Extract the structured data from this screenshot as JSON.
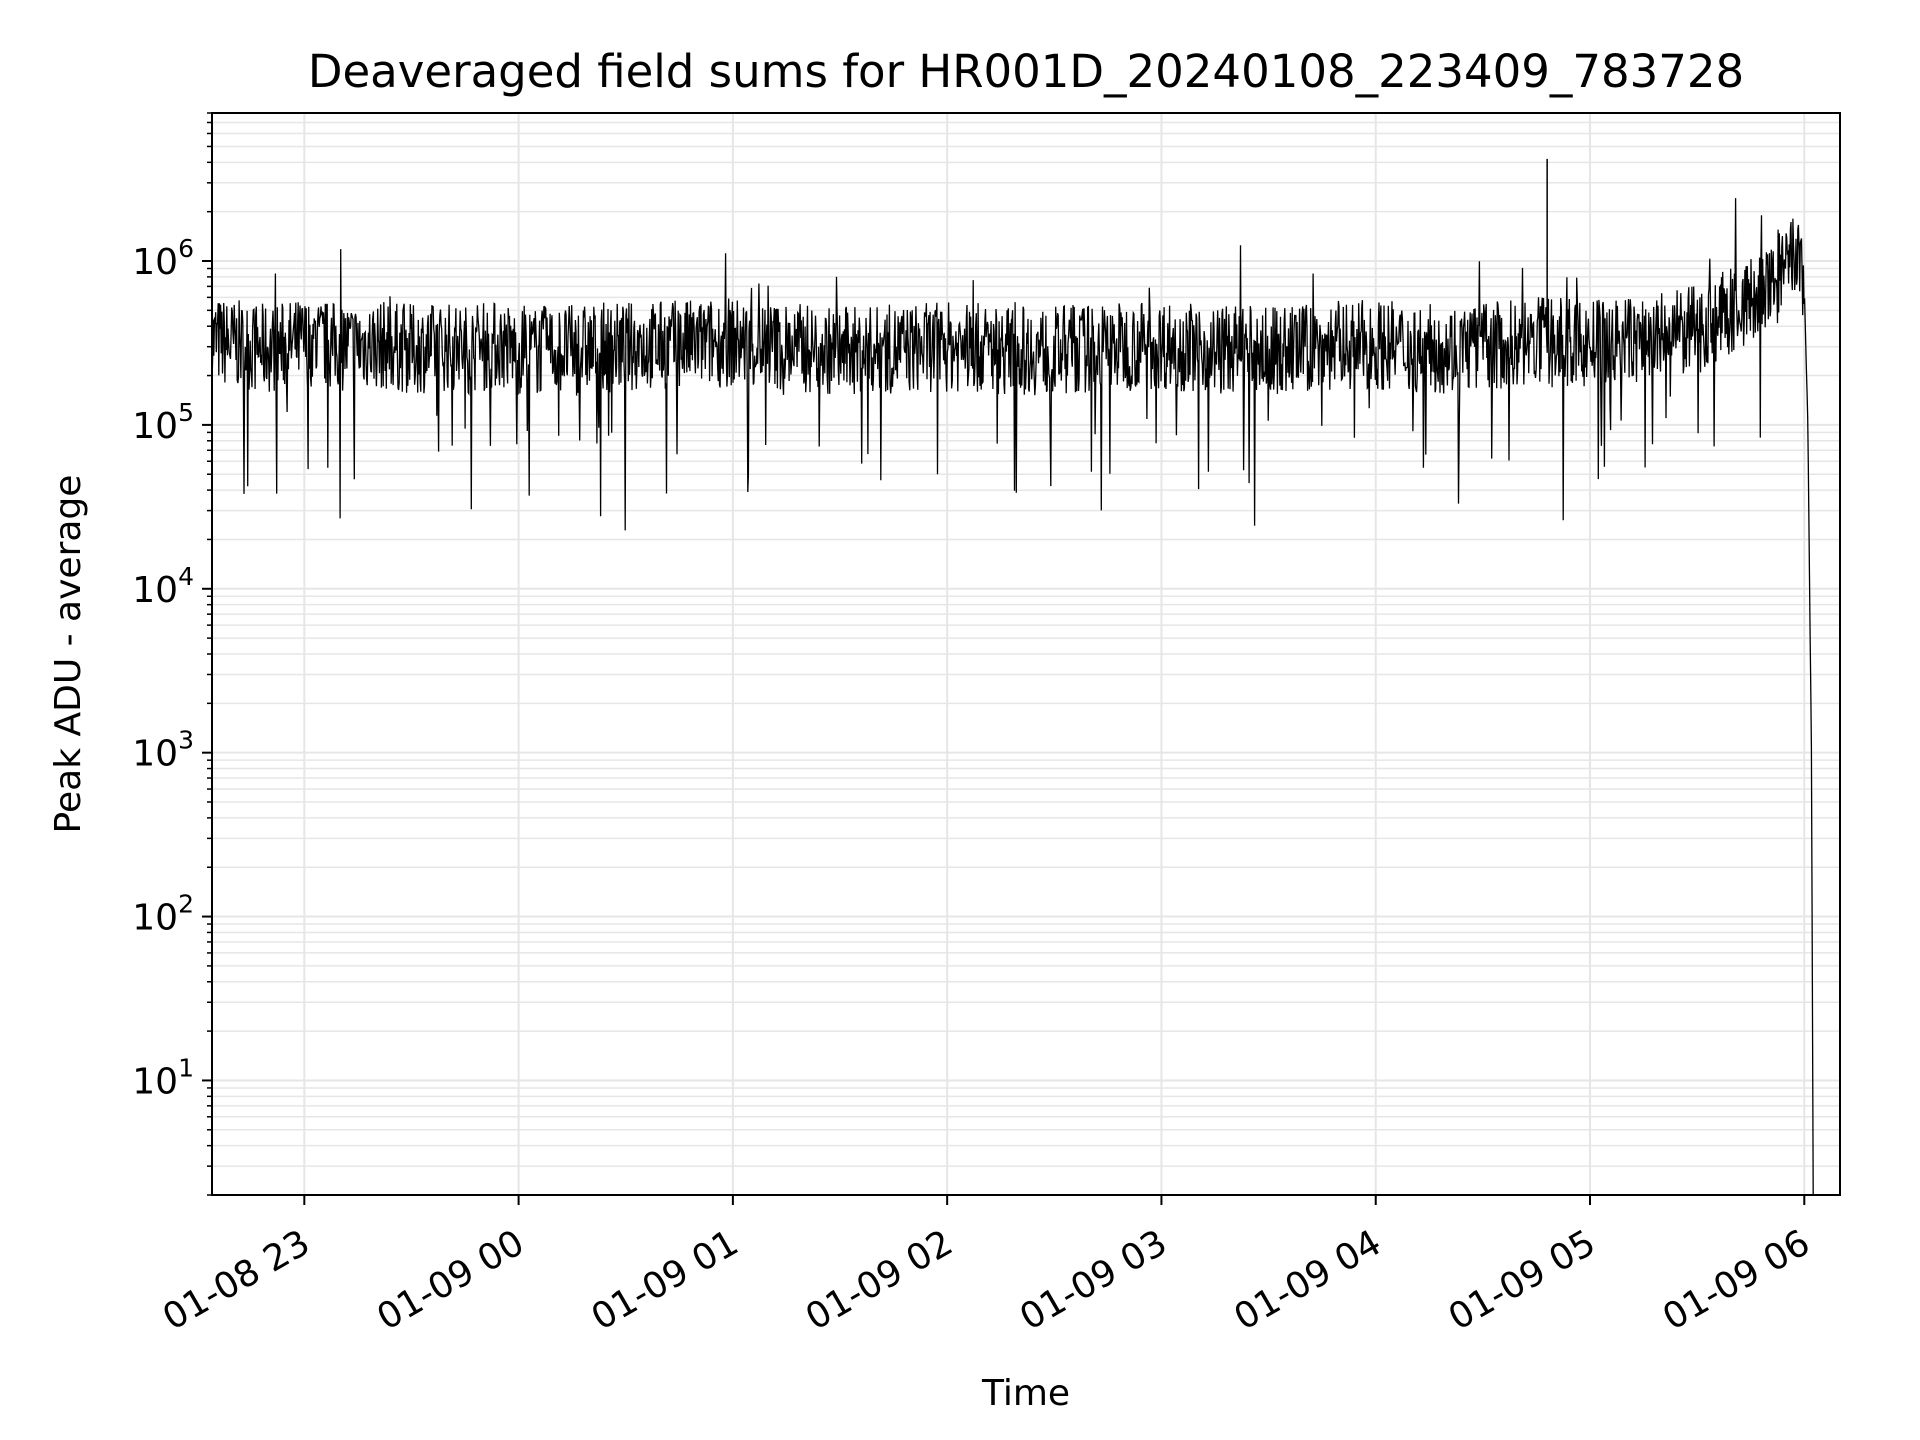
{
  "chart_data": {
    "type": "line",
    "title": "Deaveraged field sums for HR001D_20240108_223409_783728",
    "xlabel": "Time",
    "ylabel": "Peak ADU - average",
    "y_scale": "log",
    "ylim": [
      2,
      8000000
    ],
    "xlim": [
      "2024-01-08 22:34:09",
      "2024-01-09 06:10:00"
    ],
    "x_ticks": [
      {
        "label": "01-08 23",
        "value": "2024-01-08 23:00"
      },
      {
        "label": "01-09 00",
        "value": "2024-01-09 00:00"
      },
      {
        "label": "01-09 01",
        "value": "2024-01-09 01:00"
      },
      {
        "label": "01-09 02",
        "value": "2024-01-09 02:00"
      },
      {
        "label": "01-09 03",
        "value": "2024-01-09 03:00"
      },
      {
        "label": "01-09 04",
        "value": "2024-01-09 04:00"
      },
      {
        "label": "01-09 05",
        "value": "2024-01-09 05:00"
      },
      {
        "label": "01-09 06",
        "value": "2024-01-09 06:00"
      }
    ],
    "y_ticks": [
      {
        "base": "10",
        "exp": "1",
        "value": 10
      },
      {
        "base": "10",
        "exp": "2",
        "value": 100
      },
      {
        "base": "10",
        "exp": "3",
        "value": 1000
      },
      {
        "base": "10",
        "exp": "4",
        "value": 10000
      },
      {
        "base": "10",
        "exp": "5",
        "value": 100000
      },
      {
        "base": "10",
        "exp": "6",
        "value": 1000000
      }
    ],
    "grid": true,
    "legend": "none",
    "line_color": "#000000",
    "grid_color": "#e6e6e6",
    "series": [
      {
        "x": [
          "2024-01-08 22:34:09",
          "2024-01-08 22:40",
          "2024-01-08 22:45",
          "2024-01-08 22:50",
          "2024-01-08 23:00",
          "2024-01-08 23:10",
          "2024-01-08 23:20",
          "2024-01-08 23:30",
          "2024-01-08 23:40",
          "2024-01-08 23:45",
          "2024-01-08 23:55",
          "2024-01-09 00:00",
          "2024-01-09 00:15",
          "2024-01-09 00:30",
          "2024-01-09 00:45",
          "2024-01-09 01:00",
          "2024-01-09 01:15",
          "2024-01-09 01:30",
          "2024-01-09 01:45",
          "2024-01-09 02:00",
          "2024-01-09 02:15",
          "2024-01-09 02:30",
          "2024-01-09 02:45",
          "2024-01-09 03:00",
          "2024-01-09 03:15",
          "2024-01-09 03:30",
          "2024-01-09 03:45",
          "2024-01-09 04:00",
          "2024-01-09 04:15",
          "2024-01-09 04:30",
          "2024-01-09 04:45",
          "2024-01-09 05:00",
          "2024-01-09 05:15",
          "2024-01-09 05:30",
          "2024-01-09 05:40",
          "2024-01-09 05:50",
          "2024-01-09 05:55",
          "2024-01-09 05:58",
          "2024-01-09 06:00",
          "2024-01-09 06:01",
          "2024-01-09 06:02",
          "2024-01-09 06:02:30"
        ],
        "y": [
          330000,
          310000,
          300000,
          290000,
          320000,
          300000,
          310000,
          290000,
          300000,
          290000,
          310000,
          280000,
          290000,
          300000,
          310000,
          320000,
          300000,
          280000,
          290000,
          300000,
          290000,
          280000,
          300000,
          310000,
          290000,
          280000,
          300000,
          310000,
          290000,
          300000,
          320000,
          310000,
          330000,
          380000,
          500000,
          650000,
          900000,
          1100000,
          700000,
          100000,
          1000,
          2
        ]
      }
    ],
    "annotations": [
      {
        "x": "2024-01-09 04:48",
        "y": 4200000,
        "note": "spike"
      }
    ]
  }
}
